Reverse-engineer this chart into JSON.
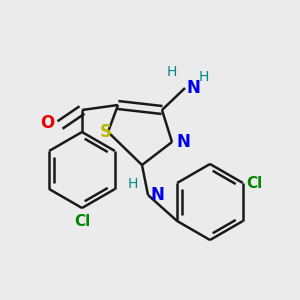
{
  "bg_color": "#ebebeb",
  "bond_color": "#1a1a1a",
  "S_color": "#b8b800",
  "N_color": "#0000ee",
  "O_color": "#ee0000",
  "Cl_color": "#008800",
  "NH_color": "#008888",
  "line_width": 1.8,
  "font_size": 11,
  "fig_size": [
    3.0,
    3.0
  ],
  "dpi": 100,
  "xlim": [
    0,
    300
  ],
  "ylim": [
    0,
    300
  ]
}
